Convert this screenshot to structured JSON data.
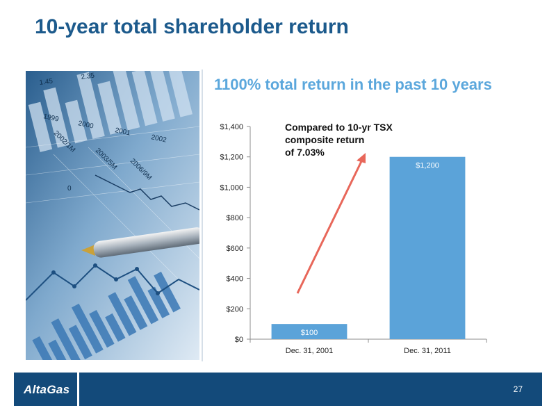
{
  "slide": {
    "title": "10-year total shareholder return",
    "headline": "1100% total return in the past 10 years",
    "annotation_lines": [
      "Compared to 10-yr TSX",
      "composite return",
      "of 7.03%"
    ],
    "page_number": "27"
  },
  "footer": {
    "logo_text": "AltaGas"
  },
  "photo": {
    "chart_labels": [
      "1.45",
      "2.35",
      "1999",
      "2000",
      "2001",
      "2002",
      "2002/1M",
      "2003/5M",
      "2006/9M",
      "0"
    ]
  },
  "colors": {
    "title": "#1c5a8c",
    "headline": "#5ba7dc",
    "bar": "#5ba3d9",
    "arrow": "#e8675a",
    "footer": "#134a7a"
  },
  "chart_data": {
    "type": "bar",
    "categories": [
      "Dec. 31, 2001",
      "Dec. 31, 2011"
    ],
    "values": [
      100,
      1200
    ],
    "data_labels": [
      "$100",
      "$1,200"
    ],
    "title": "",
    "xlabel": "",
    "ylabel": "",
    "ylim": [
      0,
      1400
    ],
    "yticks": [
      0,
      200,
      400,
      600,
      800,
      1000,
      1200,
      1400
    ],
    "ytick_labels": [
      "$0",
      "$200",
      "$400",
      "$600",
      "$800",
      "$1,000",
      "$1,200",
      "$1,400"
    ],
    "grid": false,
    "legend": "none"
  }
}
